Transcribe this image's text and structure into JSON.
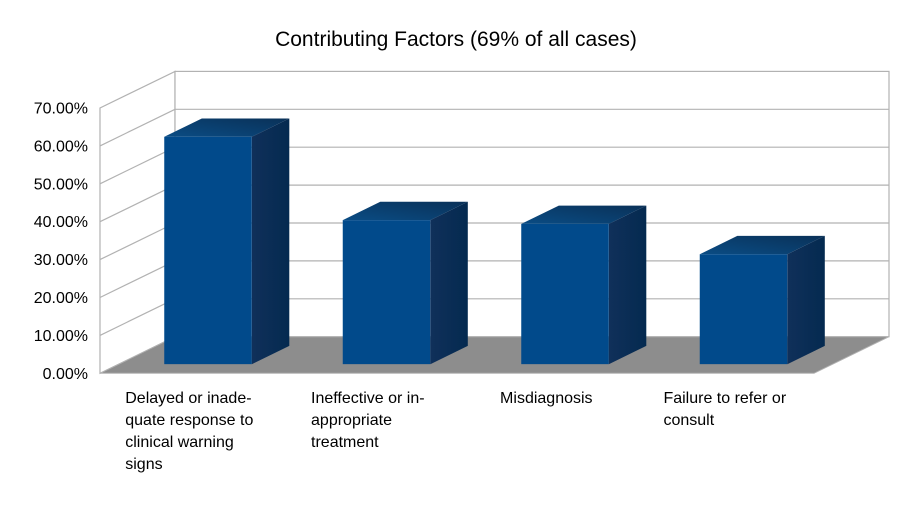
{
  "title": "Contributing Factors (69% of all cases)",
  "chart_data": {
    "type": "bar",
    "projection": "3d-oblique",
    "title": "Contributing Factors (69% of all cases)",
    "categories": [
      "Delayed or inadequate response to clinical warning signs",
      "Ineffective or inappropriate treatment",
      "Misdiagnosis",
      "Failure to refer or consult"
    ],
    "category_label_lines": [
      [
        "Delayed or inade-",
        "quate response to",
        "clinical warning",
        "signs"
      ],
      [
        "Ineffective or in-",
        "appropriate",
        "treatment"
      ],
      [
        "Misdiagnosis"
      ],
      [
        "Failure to refer or",
        "consult"
      ]
    ],
    "values": [
      60,
      38,
      37,
      29
    ],
    "unit": "%",
    "xlabel": "",
    "ylabel": "",
    "ylim": [
      0,
      70
    ],
    "ytick_step": 10,
    "ytick_labels": [
      "0.00%",
      "10.00%",
      "20.00%",
      "30.00%",
      "40.00%",
      "50.00%",
      "60.00%",
      "70.00%"
    ],
    "grid": true,
    "legend": "none",
    "colors": {
      "bar_front": "#014a8b",
      "bar_top_near": "#0a4c84",
      "bar_top_far": "#0a3158",
      "bar_side_near": "#10305a",
      "bar_side_far": "#042a50",
      "floor": "#8d8d8d",
      "wall_line": "#b2b2b2",
      "wall_fill": "#ffffff",
      "background": "#ffffff",
      "text": "#000000"
    }
  }
}
